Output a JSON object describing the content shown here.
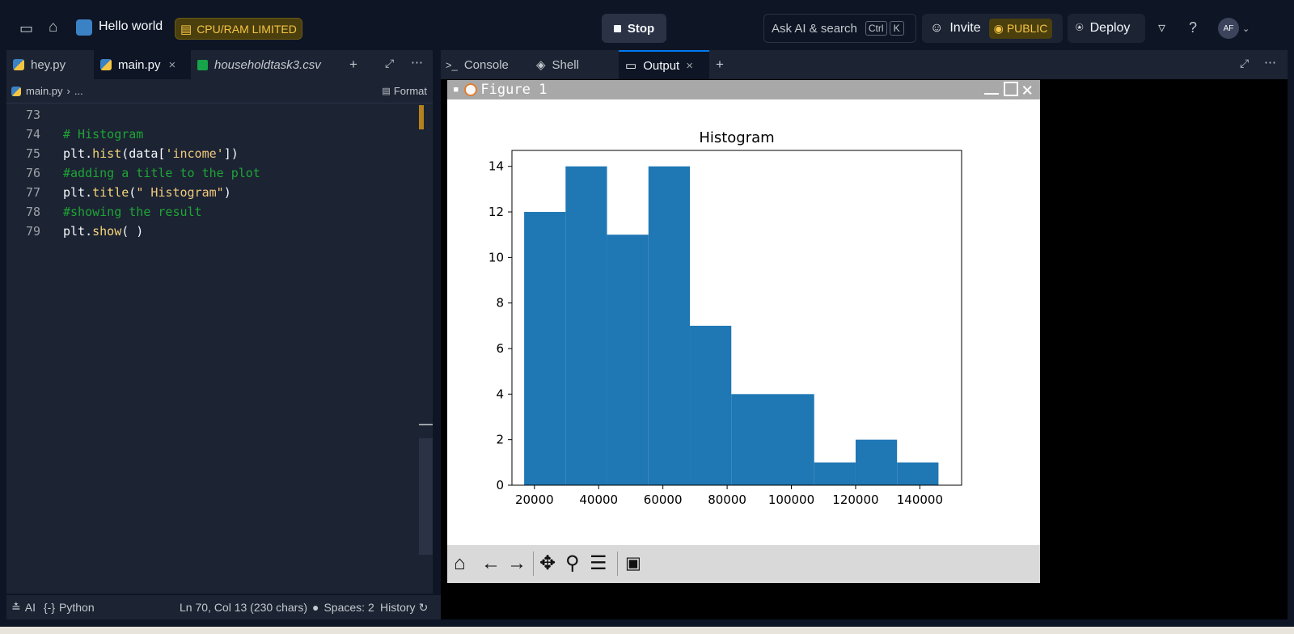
{
  "topbar": {
    "repl_name": "Hello world",
    "limit_badge": "CPU/RAM LIMITED",
    "stop_label": "Stop",
    "search_placeholder": "Ask AI & search",
    "shortcut_ctrl": "Ctrl",
    "shortcut_k": "K",
    "invite_label": "Invite",
    "visibility_label": "PUBLIC",
    "deploy_label": "Deploy",
    "avatar_initials": "AF",
    "help_label": "?"
  },
  "editor": {
    "tabs": [
      {
        "label": "hey.py"
      },
      {
        "label": "main.py"
      },
      {
        "label": "householdtask3.csv"
      }
    ],
    "breadcrumb": "main.py",
    "breadcrumb_rest": "...",
    "format_label": "Format",
    "lines": [
      {
        "n": "73",
        "parts": []
      },
      {
        "n": "74",
        "parts": [
          {
            "t": "# Histogram",
            "c": "kw-c"
          }
        ]
      },
      {
        "n": "75",
        "parts": [
          {
            "t": "plt.",
            "c": "kw-p"
          },
          {
            "t": "hist",
            "c": "kw-f"
          },
          {
            "t": "(data[",
            "c": "kw-p"
          },
          {
            "t": "'income'",
            "c": "kw-s"
          },
          {
            "t": "])",
            "c": "kw-p"
          }
        ]
      },
      {
        "n": "76",
        "parts": [
          {
            "t": "#adding a title to the plot",
            "c": "kw-c"
          }
        ]
      },
      {
        "n": "77",
        "parts": [
          {
            "t": "plt.",
            "c": "kw-p"
          },
          {
            "t": "title",
            "c": "kw-f"
          },
          {
            "t": "(",
            "c": "kw-p"
          },
          {
            "t": "\" Histogram\"",
            "c": "kw-s"
          },
          {
            "t": ")",
            "c": "kw-p"
          }
        ]
      },
      {
        "n": "78",
        "parts": [
          {
            "t": "#showing the result",
            "c": "kw-c"
          }
        ]
      },
      {
        "n": "79",
        "parts": [
          {
            "t": "plt.",
            "c": "kw-p"
          },
          {
            "t": "show",
            "c": "kw-f"
          },
          {
            "t": "( )",
            "c": "kw-p"
          }
        ]
      }
    ]
  },
  "statusbar": {
    "ai_label": "AI",
    "language": "Python",
    "cursor": "Ln 70, Col 13 (230 chars)",
    "spaces": "Spaces: 2",
    "history": "History"
  },
  "output_pane": {
    "tabs": [
      {
        "label": "Console"
      },
      {
        "label": "Shell"
      },
      {
        "label": "Output"
      }
    ]
  },
  "figure": {
    "window_title": "Figure 1"
  },
  "chart_data": {
    "type": "bar",
    "title": "Histogram",
    "xlabel": "",
    "ylabel": "",
    "bin_edges": [
      16800,
      29700,
      42600,
      55500,
      68400,
      81300,
      94200,
      107100,
      120000,
      132900,
      145800
    ],
    "values": [
      12,
      14,
      11,
      14,
      7,
      4,
      4,
      1,
      2,
      1
    ],
    "xlim": [
      13000,
      153000
    ],
    "ylim": [
      0,
      14.7
    ],
    "xticks": [
      20000,
      40000,
      60000,
      80000,
      100000,
      120000,
      140000
    ],
    "xtick_labels": [
      "20000",
      "40000",
      "60000",
      "80000",
      "100000",
      "120000",
      "140000"
    ],
    "yticks": [
      0,
      2,
      4,
      6,
      8,
      10,
      12,
      14
    ],
    "ytick_labels": [
      "0",
      "2",
      "4",
      "6",
      "8",
      "10",
      "12",
      "14"
    ],
    "bar_color": "#1f77b4",
    "grid": false
  },
  "colors": {
    "bg": "#0e1525",
    "pane": "#1c2333",
    "accent": "#0079f2",
    "badge": "#4b3f0e"
  }
}
